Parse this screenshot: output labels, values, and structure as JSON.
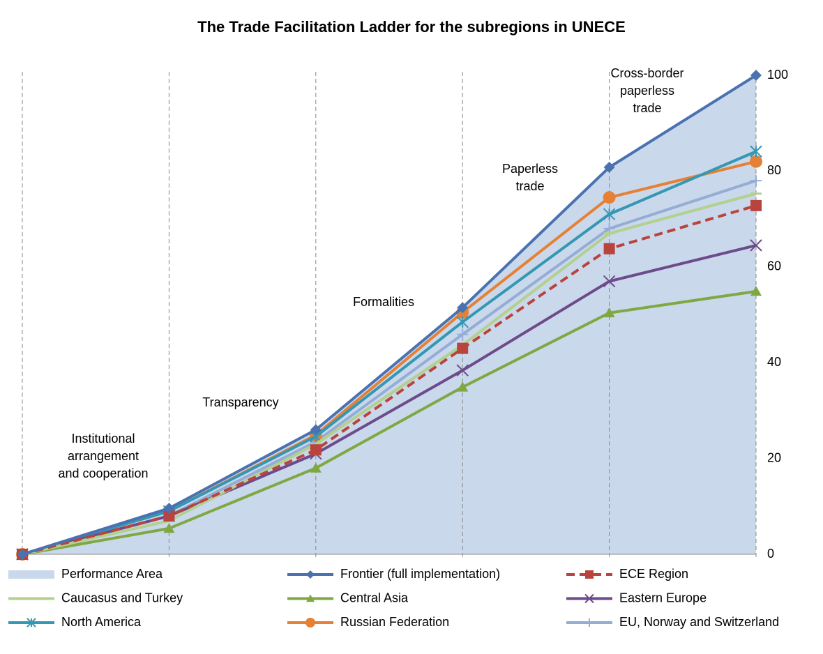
{
  "chart_data": {
    "type": "line",
    "title": "The Trade Facilitation Ladder for the subregions in UNECE",
    "categories": [
      null,
      null,
      null,
      null,
      null,
      null
    ],
    "annotations": [
      [
        "Institutional",
        "arrangement",
        "and cooperation"
      ],
      [
        "Transparency"
      ],
      [
        "Formalities"
      ],
      [
        "Paperless",
        "trade"
      ],
      [
        "Cross-border",
        "paperless",
        "trade"
      ]
    ],
    "ylim": [
      0,
      100
    ],
    "yticks": [
      0,
      20,
      40,
      60,
      80,
      100
    ],
    "y_axis_side": "right",
    "series": [
      {
        "name": "Performance Area",
        "type": "area",
        "color": "#c9d8eb",
        "marker": "none",
        "values": [
          0,
          9.6,
          26,
          51.5,
          80.8,
          100
        ]
      },
      {
        "name": "Frontier (full implementation)",
        "color": "#4a72b0",
        "marker": "diamond",
        "values": [
          0,
          9.6,
          26,
          51.5,
          80.8,
          100
        ]
      },
      {
        "name": "ECE Region",
        "color": "#b9433d",
        "marker": "square",
        "dash": true,
        "values": [
          0,
          8,
          21.8,
          43,
          63.8,
          72.8
        ]
      },
      {
        "name": "Caucasus and Turkey",
        "color": "#b3d08e",
        "marker": "dash",
        "values": [
          0,
          7,
          23,
          43.7,
          67,
          75.3
        ]
      },
      {
        "name": "Central Asia",
        "color": "#7fa843",
        "marker": "triangle",
        "values": [
          0,
          5.4,
          18,
          34.9,
          50.4,
          54.9
        ]
      },
      {
        "name": "Eastern Europe",
        "color": "#6d4b8a",
        "marker": "x",
        "values": [
          0,
          8,
          21,
          38.4,
          57,
          64.5
        ]
      },
      {
        "name": "North America",
        "color": "#3497b3",
        "marker": "star",
        "values": [
          0,
          9,
          24.6,
          48.5,
          71,
          84.1
        ]
      },
      {
        "name": "Russian Federation",
        "color": "#e68034",
        "marker": "circle",
        "values": [
          0,
          9,
          24.9,
          50.5,
          74.5,
          82
        ]
      },
      {
        "name": "EU, Norway and Switzerland",
        "color": "#95acd5",
        "marker": "plus",
        "values": [
          0,
          8,
          23.5,
          45.9,
          68,
          78
        ]
      }
    ]
  }
}
